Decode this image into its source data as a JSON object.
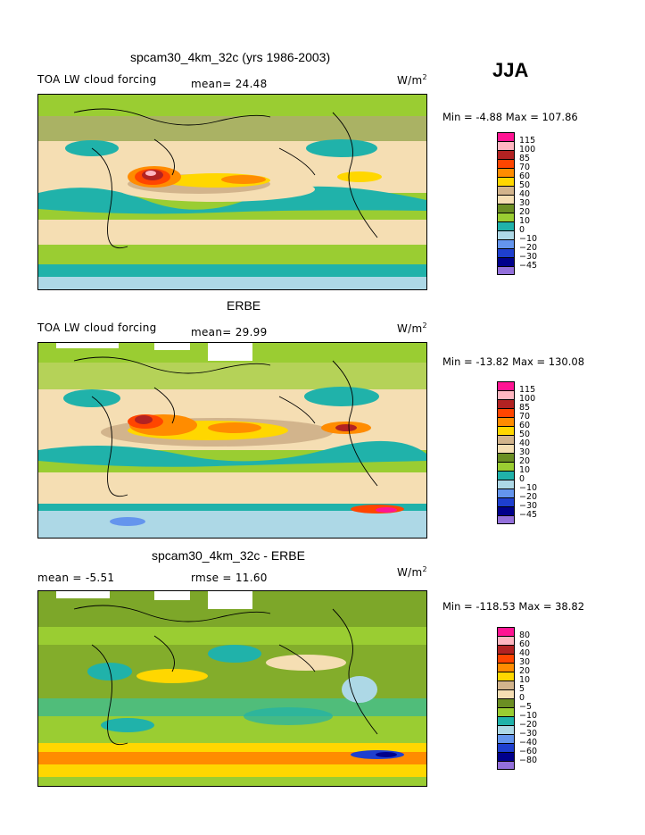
{
  "season": "JJA",
  "units": {
    "base": "W/m",
    "exp": "2"
  },
  "panels": [
    {
      "title": "spcam30_4km_32c (yrs 1986-2003)",
      "left_label": "TOA LW cloud forcing",
      "stat": "mean=  24.48",
      "minmax": "Min =  -4.88 Max = 107.86",
      "colorbar_labels": [
        "115",
        "100",
        "85",
        "70",
        "60",
        "50",
        "40",
        "30",
        "20",
        "10",
        "0",
        "-10",
        "-20",
        "-30",
        "-45"
      ]
    },
    {
      "title": "ERBE",
      "left_label": "TOA LW cloud forcing",
      "stat": "mean=  29.99",
      "minmax": "Min = -13.82 Max = 130.08",
      "colorbar_labels": [
        "115",
        "100",
        "85",
        "70",
        "60",
        "50",
        "40",
        "30",
        "20",
        "10",
        "0",
        "-10",
        "-20",
        "-30",
        "-45"
      ]
    },
    {
      "title": "spcam30_4km_32c - ERBE",
      "left_label": "mean =  -5.51",
      "stat": "rmse =  11.60",
      "minmax": "Min = -118.53 Max =  38.82",
      "colorbar_labels": [
        "80",
        "60",
        "40",
        "30",
        "20",
        "10",
        "5",
        "0",
        "-5",
        "-10",
        "-20",
        "-30",
        "-40",
        "-60",
        "-80"
      ]
    }
  ],
  "colorbar_colors": [
    "#ff1493",
    "#ffb6c1",
    "#b22222",
    "#ff4500",
    "#ff8c00",
    "#ffd700",
    "#d2b48c",
    "#f5deb3",
    "#6b8e23",
    "#9acd32",
    "#20b2aa",
    "#add8e6",
    "#6495ed",
    "#1e3fcf",
    "#00008b",
    "#9370db"
  ]
}
